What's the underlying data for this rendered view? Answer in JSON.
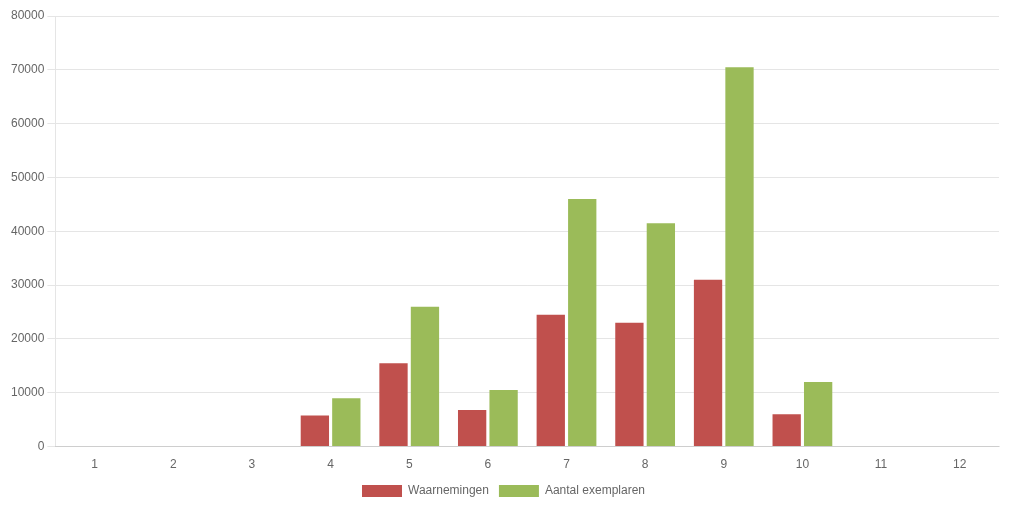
{
  "chart_data": {
    "type": "bar",
    "categories": [
      "1",
      "2",
      "3",
      "4",
      "5",
      "6",
      "7",
      "8",
      "9",
      "10",
      "11",
      "12"
    ],
    "series": [
      {
        "name": "Waarnemingen",
        "color": "#c0504d",
        "values": [
          0,
          0,
          0,
          5800,
          15500,
          6800,
          24500,
          23000,
          31000,
          6000,
          0,
          0
        ]
      },
      {
        "name": "Aantal exemplaren",
        "color": "#9bbb59",
        "values": [
          0,
          0,
          0,
          9000,
          26000,
          10500,
          46000,
          41500,
          70500,
          12000,
          0,
          0
        ]
      }
    ],
    "ylim": [
      0,
      80000
    ],
    "yticks": [
      0,
      10000,
      20000,
      30000,
      40000,
      50000,
      60000,
      70000,
      80000
    ],
    "grid": true,
    "legend": "bottom"
  }
}
